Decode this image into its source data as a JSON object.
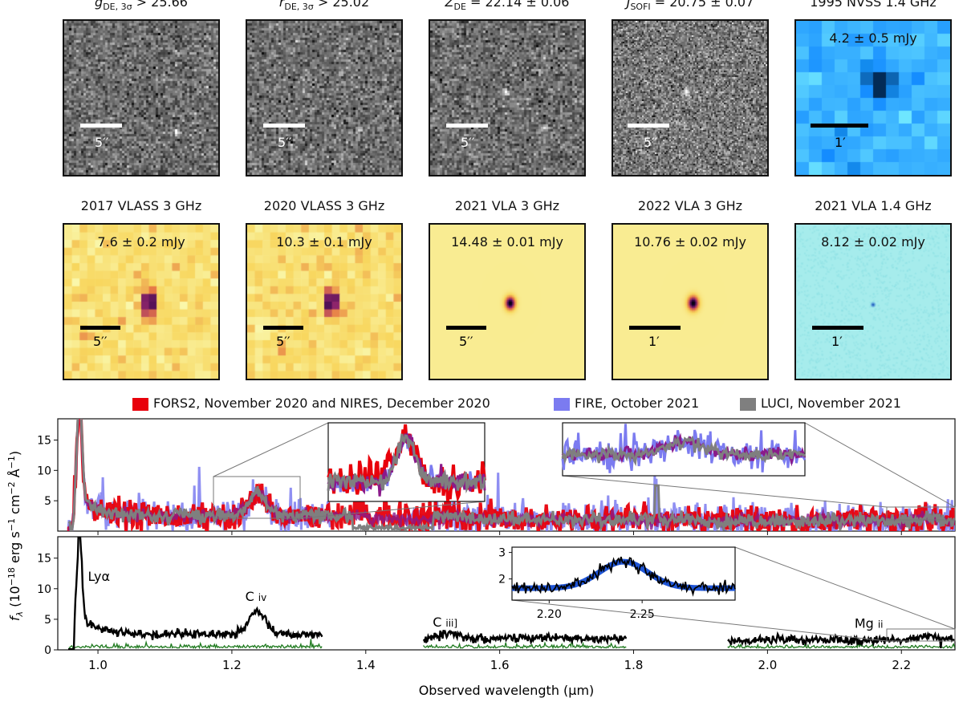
{
  "image_panels": {
    "row1": [
      {
        "title": "g",
        "title_sub": "DE, 3σ",
        "title_rest": " > 25.66",
        "flux": "",
        "scale_label": "5′′",
        "bar_color": "#ffffff",
        "style": "optical",
        "sources": [
          [
            0.73,
            0.72,
            1.0
          ]
        ]
      },
      {
        "title": "r",
        "title_sub": "DE, 3σ",
        "title_rest": " > 25.02",
        "flux": "",
        "scale_label": "5′′",
        "bar_color": "#ffffff",
        "style": "optical",
        "sources": [
          [
            0.73,
            0.71,
            1.0
          ]
        ]
      },
      {
        "title": "Z",
        "title_sub": "DE",
        "title_rest": " = 22.14 ± 0.06",
        "flux": "",
        "scale_label": "5′′",
        "bar_color": "#ffffff",
        "style": "optical",
        "sources": [
          [
            0.49,
            0.46,
            1.0
          ],
          [
            0.74,
            0.7,
            0.8
          ]
        ]
      },
      {
        "title": "J",
        "title_sub": "SOFI",
        "title_rest": " = 20.75 ± 0.07",
        "flux": "",
        "scale_label": "5′′",
        "bar_color": "#ffffff",
        "style": "nir",
        "sources": [
          [
            0.48,
            0.46,
            1.1
          ]
        ]
      },
      {
        "title": "1995 NVSS 1.4 GHz",
        "title_sub": "",
        "title_rest": "",
        "flux": "4.2 ± 0.5 mJy",
        "scale_label": "1′",
        "bar_color": "#000000",
        "style": "nvss",
        "sources": [
          [
            0.54,
            0.4,
            1.0
          ]
        ]
      }
    ],
    "row2": [
      {
        "title": "2017 VLASS 3 GHz",
        "title_sub": "",
        "title_rest": "",
        "flux": "7.6 ± 0.2 mJy",
        "scale_label": "5′′",
        "bar_color": "#000000",
        "style": "vlass",
        "sources": [
          [
            0.55,
            0.51,
            1.0
          ]
        ]
      },
      {
        "title": "2020 VLASS 3 GHz",
        "title_sub": "",
        "title_rest": "",
        "flux": "10.3 ± 0.1 mJy",
        "scale_label": "5′′",
        "bar_color": "#000000",
        "style": "vlass",
        "sources": [
          [
            0.55,
            0.51,
            1.0
          ]
        ]
      },
      {
        "title": "2021 VLA 3 GHz",
        "title_sub": "",
        "title_rest": "",
        "flux": "14.48 ± 0.01 mJy",
        "scale_label": "5′′",
        "bar_color": "#000000",
        "style": "vla",
        "sources": [
          [
            0.52,
            0.51,
            0.7
          ]
        ]
      },
      {
        "title": "2022 VLA 3 GHz",
        "title_sub": "",
        "title_rest": "",
        "flux": "10.76 ± 0.02 mJy",
        "scale_label": "1′",
        "bar_color": "#000000",
        "style": "vla",
        "sources": [
          [
            0.52,
            0.51,
            0.75
          ]
        ]
      },
      {
        "title": "2021 VLA 1.4 GHz",
        "title_sub": "",
        "title_rest": "",
        "flux": "8.12 ± 0.02 mJy",
        "scale_label": "1′",
        "bar_color": "#000000",
        "style": "vla14",
        "sources": [
          [
            0.5,
            0.52,
            0.25
          ]
        ]
      }
    ]
  },
  "legend": [
    {
      "label": "FORS2, November 2020 and NIRES, December 2020",
      "color": "#e8000b"
    },
    {
      "label": "FIRE, October 2021",
      "color": "#7b7bf0"
    },
    {
      "label": "LUCI, November 2021",
      "color": "#7f7f7f"
    }
  ],
  "chart_data": {
    "type": "line",
    "xlabel": "Observed wavelength (μm)",
    "ylabel": "f_λ (10^−18 erg s^−1 cm^−2 Å^−1)",
    "ylabel_parts": {
      "f": "f",
      "sub": "λ",
      "pre": " (10",
      "e1": "−18",
      "mid": " erg s",
      "e2": "−1",
      "mid2": " cm",
      "e3": "−2",
      "mid3": " Å",
      "e4": "−1",
      "end": ")"
    },
    "xlim": [
      0.94,
      2.28
    ],
    "x_ticks": [
      "1.0",
      "1.2",
      "1.4",
      "1.6",
      "1.8",
      "2.0",
      "2.2"
    ],
    "top_panel": {
      "ylim": [
        0,
        18.5
      ],
      "y_ticks": [
        "5",
        "10",
        "15"
      ],
      "series": [
        {
          "name": "FORS2 + NIRES",
          "color": "#e8000b",
          "ranges": [
            [
              0.955,
              2.28
            ]
          ],
          "peak": 17.5
        },
        {
          "name": "FIRE",
          "color": "#7b7bf0",
          "ranges": [
            [
              0.955,
              1.35
            ],
            [
              1.46,
              2.28
            ]
          ],
          "peak": 17.5
        },
        {
          "name": "LUCI",
          "color": "#7f7f7f",
          "ranges": [
            [
              0.955,
              2.28
            ]
          ],
          "peak": 17.5
        }
      ]
    },
    "bottom_panel": {
      "ylim": [
        0,
        18.5
      ],
      "y_ticks": [
        "0",
        "5",
        "10",
        "15"
      ],
      "series": [
        {
          "name": "combined spectrum",
          "color": "#000000",
          "ranges": [
            [
              0.955,
              1.335
            ],
            [
              1.485,
              1.79
            ],
            [
              1.94,
              2.28
            ]
          ],
          "peak_lya": 16.7,
          "peak_civ": 6.6,
          "peak_ciii": 2.9,
          "peak_mgii": 2.6,
          "continuum": 2.2
        },
        {
          "name": "error",
          "color": "#1e7a1e",
          "ranges": [
            [
              0.955,
              1.335
            ],
            [
              1.485,
              1.79
            ],
            [
              1.94,
              2.28
            ]
          ],
          "level": 0.3
        }
      ],
      "line_labels": [
        {
          "label": "Lyα",
          "x": 0.985,
          "y": 11.3
        },
        {
          "label": "C",
          "roman": "iv",
          "x": 1.22,
          "y": 8.0
        },
        {
          "label": "C",
          "roman": "iii]",
          "x": 1.5,
          "y": 3.8
        },
        {
          "label": "Mg",
          "roman": "ii",
          "x": 2.13,
          "y": 3.6
        }
      ],
      "inset": {
        "xlim": [
          2.18,
          2.3
        ],
        "ylim": [
          1.2,
          3.2
        ],
        "x_ticks": [
          "2.20",
          "2.25"
        ],
        "y_ticks": [
          "2",
          "3"
        ],
        "gaussian": {
          "center": 2.24,
          "amplitude": 1.0,
          "sigma": 0.013,
          "baseline": 1.65,
          "color": "#1f55d6"
        }
      }
    }
  }
}
